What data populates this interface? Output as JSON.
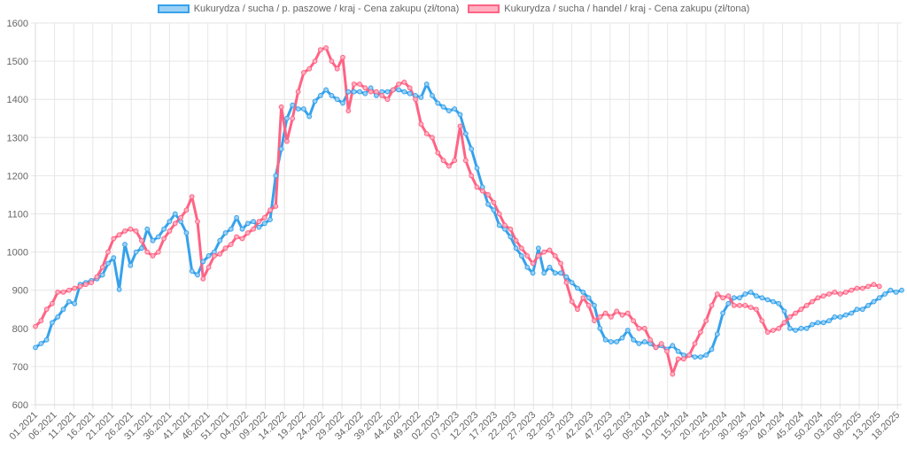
{
  "chart_data": {
    "type": "line",
    "title": "",
    "xlabel": "",
    "ylabel": "",
    "ylim": [
      600,
      1600
    ],
    "y_ticks": [
      600,
      700,
      800,
      900,
      1000,
      1100,
      1200,
      1300,
      1400,
      1500,
      1600
    ],
    "grid": true,
    "legend_position": "top-center",
    "x_ticks": [
      "01.2021",
      "06.2021",
      "11.2021",
      "16.2021",
      "21.2021",
      "26.2021",
      "31.2021",
      "36.2021",
      "41.2021",
      "46.2021",
      "51.2021",
      "04.2022",
      "09.2022",
      "14.2022",
      "19.2022",
      "24.2022",
      "29.2022",
      "34.2022",
      "39.2022",
      "44.2022",
      "49.2022",
      "02.2023",
      "07.2023",
      "12.2023",
      "17.2023",
      "22.2023",
      "27.2023",
      "32.2023",
      "37.2023",
      "42.2023",
      "47.2023",
      "52.2023",
      "05.2024",
      "10.2024",
      "15.2024",
      "20.2024",
      "25.2024",
      "30.2024",
      "35.2024",
      "40.2024",
      "45.2024",
      "50.2024",
      "03.2025",
      "08.2025",
      "13.2025",
      "18.2025"
    ],
    "series": [
      {
        "name": "Kukurydza / sucha / p. paszowe / kraj - Cena zakupu (zł/tona)",
        "color": "#36a2eb",
        "fill": "#9ad0f5",
        "values": [
          750,
          760,
          770,
          815,
          830,
          850,
          870,
          865,
          915,
          920,
          925,
          930,
          940,
          970,
          985,
          902,
          1020,
          965,
          1000,
          1010,
          1060,
          1030,
          1040,
          1060,
          1080,
          1100,
          1080,
          1050,
          950,
          940,
          975,
          990,
          1000,
          1030,
          1050,
          1060,
          1090,
          1060,
          1075,
          1080,
          1065,
          1075,
          1085,
          1200,
          1270,
          1350,
          1385,
          1375,
          1375,
          1355,
          1395,
          1410,
          1425,
          1410,
          1400,
          1390,
          1420,
          1420,
          1420,
          1415,
          1430,
          1410,
          1420,
          1420,
          1425,
          1425,
          1420,
          1415,
          1410,
          1405,
          1440,
          1410,
          1390,
          1380,
          1370,
          1375,
          1360,
          1310,
          1270,
          1220,
          1170,
          1125,
          1110,
          1070,
          1060,
          1040,
          1010,
          990,
          960,
          945,
          1010,
          945,
          960,
          945,
          945,
          935,
          920,
          905,
          895,
          880,
          860,
          800,
          770,
          765,
          765,
          775,
          795,
          770,
          760,
          765,
          760,
          750,
          755,
          745,
          755,
          740,
          730,
          730,
          725,
          725,
          730,
          745,
          785,
          840,
          865,
          880,
          880,
          890,
          895,
          885,
          880,
          875,
          870,
          865,
          845,
          800,
          795,
          800,
          800,
          810,
          815,
          815,
          820,
          830,
          830,
          835,
          840,
          850,
          850,
          860,
          870,
          880,
          890,
          900,
          895,
          900
        ]
      },
      {
        "name": "Kukurydza / sucha / handel / kraj - Cena zakupu (zł/tona)",
        "color": "#ff6384",
        "fill": "#ffb1c1",
        "values": [
          805,
          820,
          850,
          865,
          895,
          895,
          900,
          905,
          910,
          915,
          920,
          935,
          960,
          1000,
          1035,
          1045,
          1055,
          1060,
          1055,
          1030,
          1000,
          990,
          1000,
          1035,
          1055,
          1075,
          1090,
          1110,
          1145,
          1080,
          930,
          960,
          990,
          995,
          1010,
          1020,
          1040,
          1035,
          1050,
          1060,
          1080,
          1090,
          1110,
          1120,
          1380,
          1290,
          1350,
          1420,
          1470,
          1480,
          1500,
          1530,
          1535,
          1500,
          1480,
          1510,
          1370,
          1440,
          1440,
          1430,
          1420,
          1420,
          1410,
          1400,
          1425,
          1440,
          1445,
          1430,
          1400,
          1335,
          1310,
          1300,
          1260,
          1240,
          1225,
          1240,
          1330,
          1240,
          1200,
          1170,
          1160,
          1150,
          1130,
          1100,
          1070,
          1060,
          1030,
          1010,
          990,
          970,
          990,
          1000,
          1005,
          990,
          970,
          920,
          870,
          850,
          880,
          860,
          820,
          830,
          840,
          830,
          845,
          835,
          840,
          820,
          800,
          800,
          770,
          750,
          760,
          740,
          680,
          720,
          720,
          730,
          760,
          790,
          820,
          860,
          890,
          880,
          885,
          860,
          860,
          860,
          855,
          850,
          820,
          790,
          795,
          800,
          815,
          830,
          840,
          850,
          860,
          870,
          880,
          885,
          890,
          895,
          890,
          895,
          900,
          905,
          905,
          910,
          915,
          910
        ]
      }
    ]
  }
}
